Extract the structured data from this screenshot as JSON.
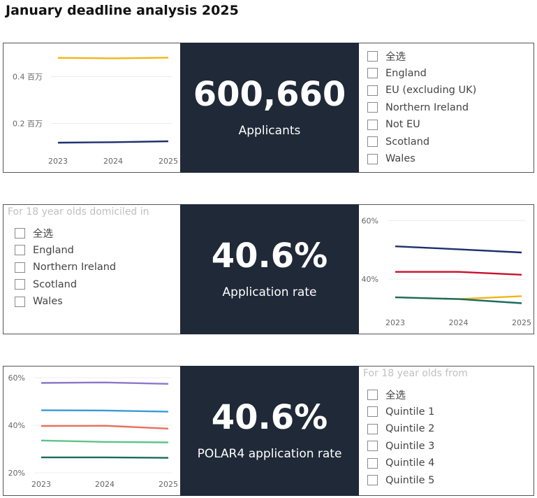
{
  "page": {
    "title": "January deadline analysis 2025"
  },
  "row1": {
    "kpi": {
      "value": "600,660",
      "label": "Applicants"
    },
    "slicer": {
      "header": "",
      "options": [
        "全选",
        "England",
        "EU (excluding UK)",
        "Northern Ireland",
        "Not EU",
        "Scotland",
        "Wales"
      ]
    }
  },
  "row2": {
    "kpi": {
      "value": "40.6%",
      "label": "Application rate"
    },
    "slicer": {
      "header": "For 18 year olds domiciled in",
      "options": [
        "全选",
        "England",
        "Northern Ireland",
        "Scotland",
        "Wales"
      ]
    }
  },
  "row3": {
    "kpi": {
      "value": "40.6%",
      "label": "POLAR4 application rate"
    },
    "slicer": {
      "header": "For 18 year olds from",
      "options": [
        "全选",
        "Quintile 1",
        "Quintile 2",
        "Quintile 3",
        "Quintile 4",
        "Quintile 5"
      ]
    }
  },
  "chart_data": [
    {
      "type": "line",
      "x": [
        "2023",
        "2024",
        "2025"
      ],
      "ylim": [
        0.1,
        0.5
      ],
      "yticks": [
        {
          "value": 0.2,
          "label": "0.2 百万"
        },
        {
          "value": 0.4,
          "label": "0.4 百万"
        }
      ],
      "grid": true,
      "series": [
        {
          "values": [
            0.48,
            0.478,
            0.481
          ],
          "color": "#f2b517"
        },
        {
          "values": [
            0.118,
            0.12,
            0.124
          ],
          "color": "#1e2f6e"
        }
      ]
    },
    {
      "type": "line",
      "x": [
        "2023",
        "2024",
        "2025"
      ],
      "ylim": [
        0.3,
        0.62
      ],
      "yticks": [
        {
          "value": 0.4,
          "label": "40%"
        },
        {
          "value": 0.6,
          "label": "60%"
        }
      ],
      "grid": true,
      "series": [
        {
          "values": [
            0.512,
            0.502,
            0.491
          ],
          "color": "#1e2f6e"
        },
        {
          "values": [
            0.425,
            0.425,
            0.415
          ],
          "color": "#c8102e"
        },
        {
          "values": [
            0.338,
            0.332,
            0.342
          ],
          "color": "#f2b517"
        },
        {
          "values": [
            0.338,
            0.332,
            0.318
          ],
          "color": "#1a6b60"
        }
      ]
    },
    {
      "type": "line",
      "x": [
        "2023",
        "2024",
        "2025"
      ],
      "ylim": [
        0.2,
        0.6
      ],
      "yticks": [
        {
          "value": 0.2,
          "label": "20%"
        },
        {
          "value": 0.4,
          "label": "40%"
        },
        {
          "value": 0.6,
          "label": "60%"
        }
      ],
      "grid": true,
      "series": [
        {
          "values": [
            0.578,
            0.58,
            0.574
          ],
          "color": "#8a78c8"
        },
        {
          "values": [
            0.463,
            0.462,
            0.457
          ],
          "color": "#3a9ad4"
        },
        {
          "values": [
            0.397,
            0.398,
            0.386
          ],
          "color": "#e8705a"
        },
        {
          "values": [
            0.336,
            0.33,
            0.328
          ],
          "color": "#5cc48a"
        },
        {
          "values": [
            0.265,
            0.265,
            0.263
          ],
          "color": "#1a6b60"
        }
      ]
    }
  ]
}
